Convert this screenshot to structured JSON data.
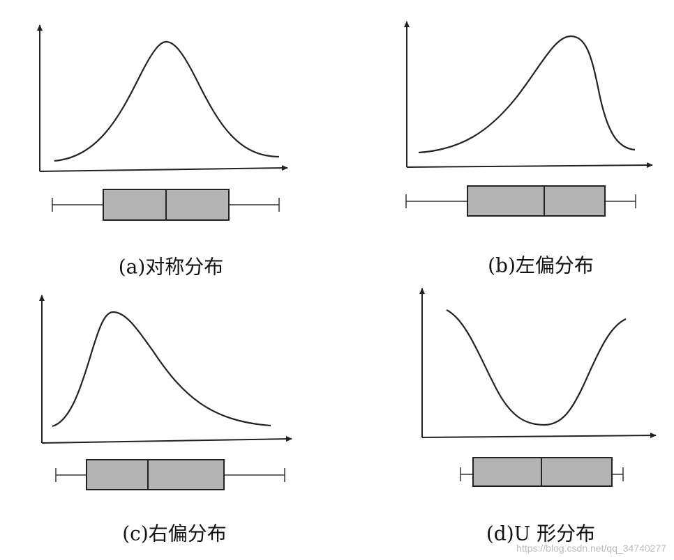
{
  "captions": [
    "(a)对称分布",
    "(b)左偏分布",
    "(c)右偏分布",
    "(d)U 形分布"
  ],
  "watermark": "https://blog.csdn.net/qq_34740277"
}
